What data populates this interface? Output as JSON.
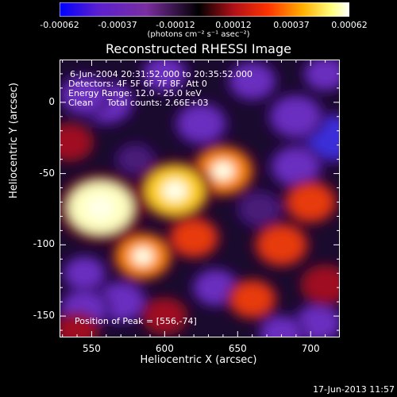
{
  "colorbar": {
    "tick_labels": [
      "-0.00062",
      "-0.00037",
      "-0.00012",
      "0.00012",
      "0.00037",
      "0.00062"
    ],
    "unit_label": "(photons cm⁻² s⁻¹ asec⁻²)",
    "colors": [
      "#0000ff",
      "#5a1fd0",
      "#7a2ea0",
      "#000000",
      "#b01018",
      "#ff3300",
      "#ffb000",
      "#ffff80",
      "#ffffff"
    ]
  },
  "title": "Reconstructed RHESSI Image",
  "annotations": {
    "time": "6-Jun-2004 20:31:52.000 to 20:35:52.000",
    "detectors": "Detectors: 4F 5F 6F 7F 8F, Att 0",
    "energy": "Energy Range: 12.0 - 25.0 keV",
    "method": "Clean",
    "counts": "Total counts: 2.66E+03",
    "peak": "Position of Peak = [556,-74]"
  },
  "axes": {
    "xlabel": "Heliocentric X (arcsec)",
    "ylabel": "Heliocentric Y (arcsec)",
    "xticks": [
      "550",
      "600",
      "650",
      "700"
    ],
    "yticks": [
      "0",
      "-50",
      "-100",
      "-150"
    ]
  },
  "datestamp": "17-Jun-2013 11:57",
  "chart_data": {
    "type": "heatmap",
    "title": "Reconstructed RHESSI Image",
    "xlabel": "Heliocentric X (arcsec)",
    "ylabel": "Heliocentric Y (arcsec)",
    "xlim": [
      528,
      720
    ],
    "ylim": [
      -165,
      30
    ],
    "xticks": [
      550,
      600,
      650,
      700
    ],
    "yticks": [
      0,
      -50,
      -100,
      -150
    ],
    "colorbar_range": [
      -0.00062,
      0.00062
    ],
    "peak_position": [
      556,
      -74
    ],
    "sources": [
      {
        "x": 556,
        "y": -74,
        "value": 0.00062
      },
      {
        "x": 607,
        "y": -62,
        "value": 0.00052
      },
      {
        "x": 640,
        "y": -48,
        "value": 0.00042
      },
      {
        "x": 585,
        "y": -108,
        "value": 0.00038
      },
      {
        "x": 620,
        "y": -95,
        "value": 0.00028
      },
      {
        "x": 680,
        "y": -100,
        "value": 0.00032
      },
      {
        "x": 660,
        "y": -138,
        "value": 0.00026
      },
      {
        "x": 700,
        "y": -70,
        "value": 0.0003
      },
      {
        "x": 710,
        "y": -128,
        "value": 0.00024
      },
      {
        "x": 535,
        "y": -28,
        "value": 0.00022
      },
      {
        "x": 540,
        "y": -160,
        "value": 0.00018
      },
      {
        "x": 600,
        "y": -150,
        "value": 0.0002
      },
      {
        "x": 545,
        "y": 5,
        "value": -0.00028
      },
      {
        "x": 560,
        "y": 0,
        "value": -0.00034
      },
      {
        "x": 600,
        "y": 20,
        "value": -0.00022
      },
      {
        "x": 625,
        "y": -15,
        "value": -0.0003
      },
      {
        "x": 660,
        "y": 15,
        "value": -0.00026
      },
      {
        "x": 690,
        "y": -10,
        "value": -0.00034
      },
      {
        "x": 715,
        "y": -25,
        "value": -0.0004
      },
      {
        "x": 690,
        "y": -45,
        "value": -0.0003
      },
      {
        "x": 710,
        "y": 20,
        "value": -0.0002
      },
      {
        "x": 665,
        "y": -75,
        "value": -0.00018
      },
      {
        "x": 545,
        "y": -145,
        "value": -0.00028
      },
      {
        "x": 570,
        "y": -140,
        "value": -0.0003
      },
      {
        "x": 545,
        "y": -120,
        "value": -0.0002
      },
      {
        "x": 635,
        "y": -130,
        "value": -0.00024
      },
      {
        "x": 680,
        "y": -162,
        "value": -0.00022
      },
      {
        "x": 705,
        "y": -155,
        "value": -0.00026
      },
      {
        "x": 580,
        "y": -40,
        "value": -0.00012
      }
    ]
  }
}
